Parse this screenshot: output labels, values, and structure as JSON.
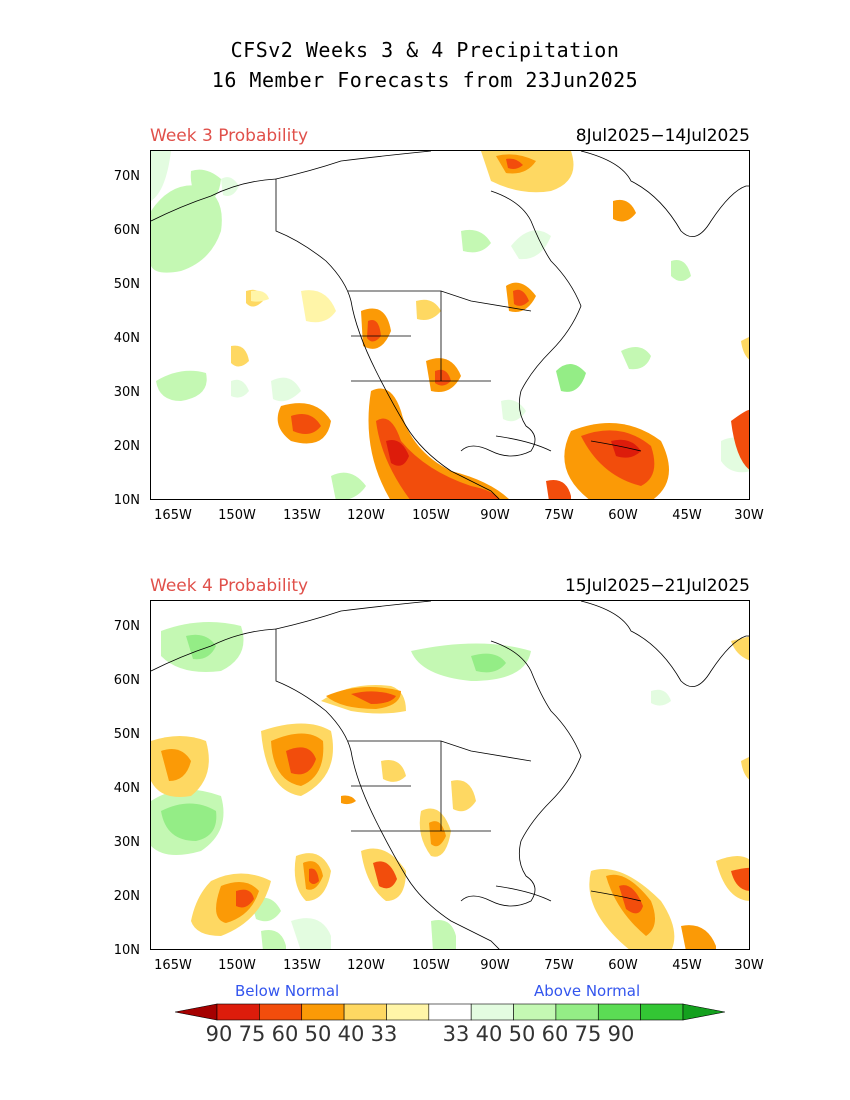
{
  "title_line1": "CFSv2 Weeks 3 & 4 Precipitation",
  "title_line2": "16 Member Forecasts from 23Jun2025",
  "panels": [
    {
      "label": "Week 3 Probability",
      "dates": "8Jul2025−14Jul2025"
    },
    {
      "label": "Week 4 Probability",
      "dates": "15Jul2025−21Jul2025"
    }
  ],
  "lat_labels": [
    "70N",
    "60N",
    "50N",
    "40N",
    "30N",
    "20N",
    "10N"
  ],
  "lon_labels": [
    "165W",
    "150W",
    "135W",
    "120W",
    "105W",
    "90W",
    "75W",
    "60W",
    "45W",
    "30W"
  ],
  "legend": {
    "below_label": "Below Normal",
    "above_label": "Above Normal",
    "values": [
      "90",
      "75",
      "60",
      "50",
      "40",
      "33",
      "33",
      "40",
      "50",
      "60",
      "75",
      "90"
    ],
    "colors": [
      "#a50000",
      "#dd1c0b",
      "#f24d0c",
      "#fb9a06",
      "#fed862",
      "#fff5a8",
      "#ffffff",
      "#e3fce0",
      "#c4f8b3",
      "#94ed86",
      "#5bdc54",
      "#33c634",
      "#14a01e"
    ]
  }
}
